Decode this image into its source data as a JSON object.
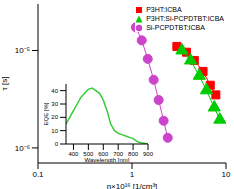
{
  "chart_data": [
    {
      "type": "line",
      "x_label": "n×10¹⁶ [1/cm³]",
      "y_label": "τ [s]",
      "log": true,
      "grid": false,
      "legend": "top right",
      "xlim": [
        0.1,
        10
      ],
      "xticks": [
        0.1,
        1,
        10
      ],
      "ylim": [
        7e-07,
        3e-05
      ],
      "yticks": [
        {
          "value": 1e-06,
          "label": "10⁻⁶"
        },
        {
          "value": 1e-05,
          "label": "10⁻⁵"
        }
      ],
      "series": [
        {
          "name": "P3HT:ICBA",
          "color": "#ff0000",
          "marker": "square",
          "x": [
            3.0,
            3.8,
            4.6,
            5.7,
            6.8,
            7.8
          ],
          "values": [
            1.1e-05,
            9.6e-06,
            7.9e-06,
            6.1e-06,
            4.4e-06,
            3.5e-06
          ]
        },
        {
          "name": "P3HT:Si-PCPDTBT:ICBA",
          "color": "#00cc00",
          "marker": "triangle",
          "x": [
            3.4,
            4.2,
            5.2,
            6.2,
            7.5,
            8.6
          ],
          "values": [
            1e-05,
            7.9e-06,
            5.5e-06,
            3.9e-06,
            2.6e-06,
            1.95e-06
          ]
        },
        {
          "name": "Si-PCPDTBT:ICBA",
          "color": "#cc44cc",
          "marker": "circle",
          "x": [
            1.1,
            1.27,
            1.47,
            1.7,
            1.92,
            2.17,
            2.4
          ],
          "values": [
            1.73e-05,
            1.27e-05,
            8.2e-06,
            5e-06,
            3.1e-06,
            1.9e-06,
            1.27e-06
          ]
        }
      ]
    },
    {
      "type": "line",
      "x_label": "Wavelength [nm]",
      "y_label": "EQE [%]",
      "grid": false,
      "xlim": [
        350,
        900
      ],
      "xticks": [
        400,
        500,
        600,
        700,
        800,
        900
      ],
      "ylim": [
        0,
        45
      ],
      "yticks": [
        0,
        10,
        20,
        30,
        40
      ],
      "series": [
        {
          "name": "EQE",
          "color": "#33cc33",
          "x": [
            350,
            375,
            400,
            425,
            450,
            475,
            500,
            525,
            550,
            575,
            600,
            625,
            650,
            675,
            700,
            725,
            750,
            775,
            800,
            825,
            850,
            875,
            900
          ],
          "values": [
            15,
            20,
            25,
            30,
            35,
            38,
            41,
            42,
            40,
            38,
            33,
            25,
            15,
            10,
            8,
            7,
            6,
            5,
            4,
            2,
            1,
            0.5,
            0
          ]
        }
      ]
    }
  ]
}
